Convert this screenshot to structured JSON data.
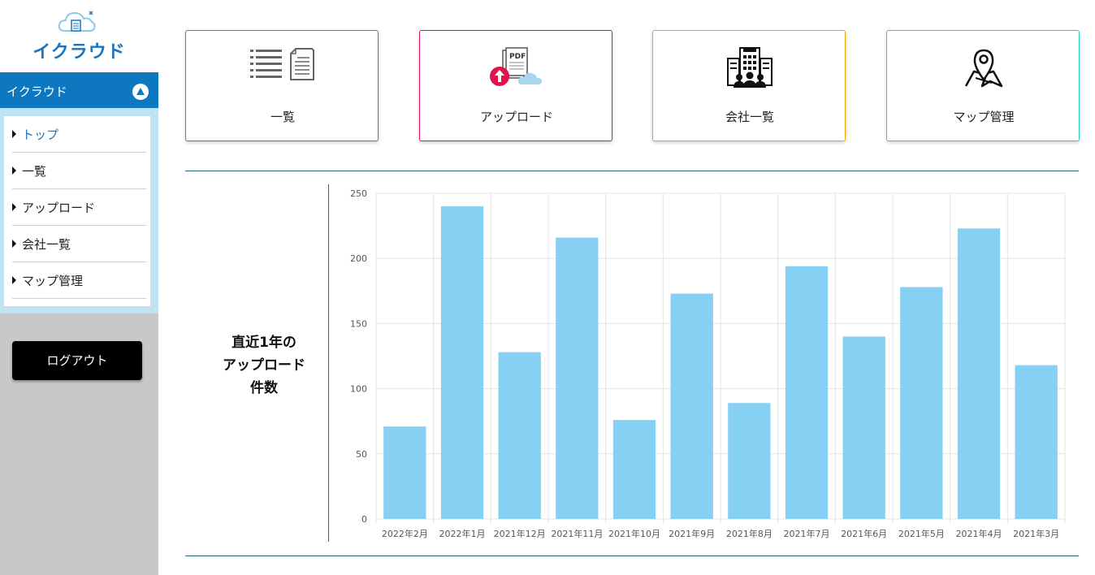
{
  "logo": {
    "text": "イクラウド",
    "icon": "cloud-document-icon"
  },
  "sidebar": {
    "section_title": "イクラウド",
    "items": [
      {
        "label": "トップ",
        "active": true
      },
      {
        "label": "一覧",
        "active": false
      },
      {
        "label": "アップロード",
        "active": false
      },
      {
        "label": "会社一覧",
        "active": false
      },
      {
        "label": "マップ管理",
        "active": false
      }
    ],
    "logout_label": "ログアウト"
  },
  "cards": [
    {
      "label": "一覧",
      "icon": "list-document-icon",
      "border_color": "#777777"
    },
    {
      "label": "アップロード",
      "icon": "pdf-upload-icon",
      "border_color": "#e0134a"
    },
    {
      "label": "会社一覧",
      "icon": "company-building-icon",
      "border_color": "#f0a500"
    },
    {
      "label": "マップ管理",
      "icon": "map-pin-icon",
      "border_color": "#2bd1b4"
    }
  ],
  "chart_title_lines": [
    "直近1年の",
    "アップロード",
    "件数"
  ],
  "chart_data": {
    "type": "bar",
    "categories": [
      "2022年2月",
      "2022年1月",
      "2021年12月",
      "2021年11月",
      "2021年10月",
      "2021年9月",
      "2021年8月",
      "2021年7月",
      "2021年6月",
      "2021年5月",
      "2021年4月",
      "2021年3月"
    ],
    "values": [
      71,
      240,
      128,
      216,
      76,
      173,
      89,
      194,
      140,
      178,
      223,
      118
    ],
    "ylim": [
      0,
      250
    ],
    "yticks": [
      0,
      50,
      100,
      150,
      200,
      250
    ],
    "grid": true,
    "bar_color": "#86d0f4"
  }
}
